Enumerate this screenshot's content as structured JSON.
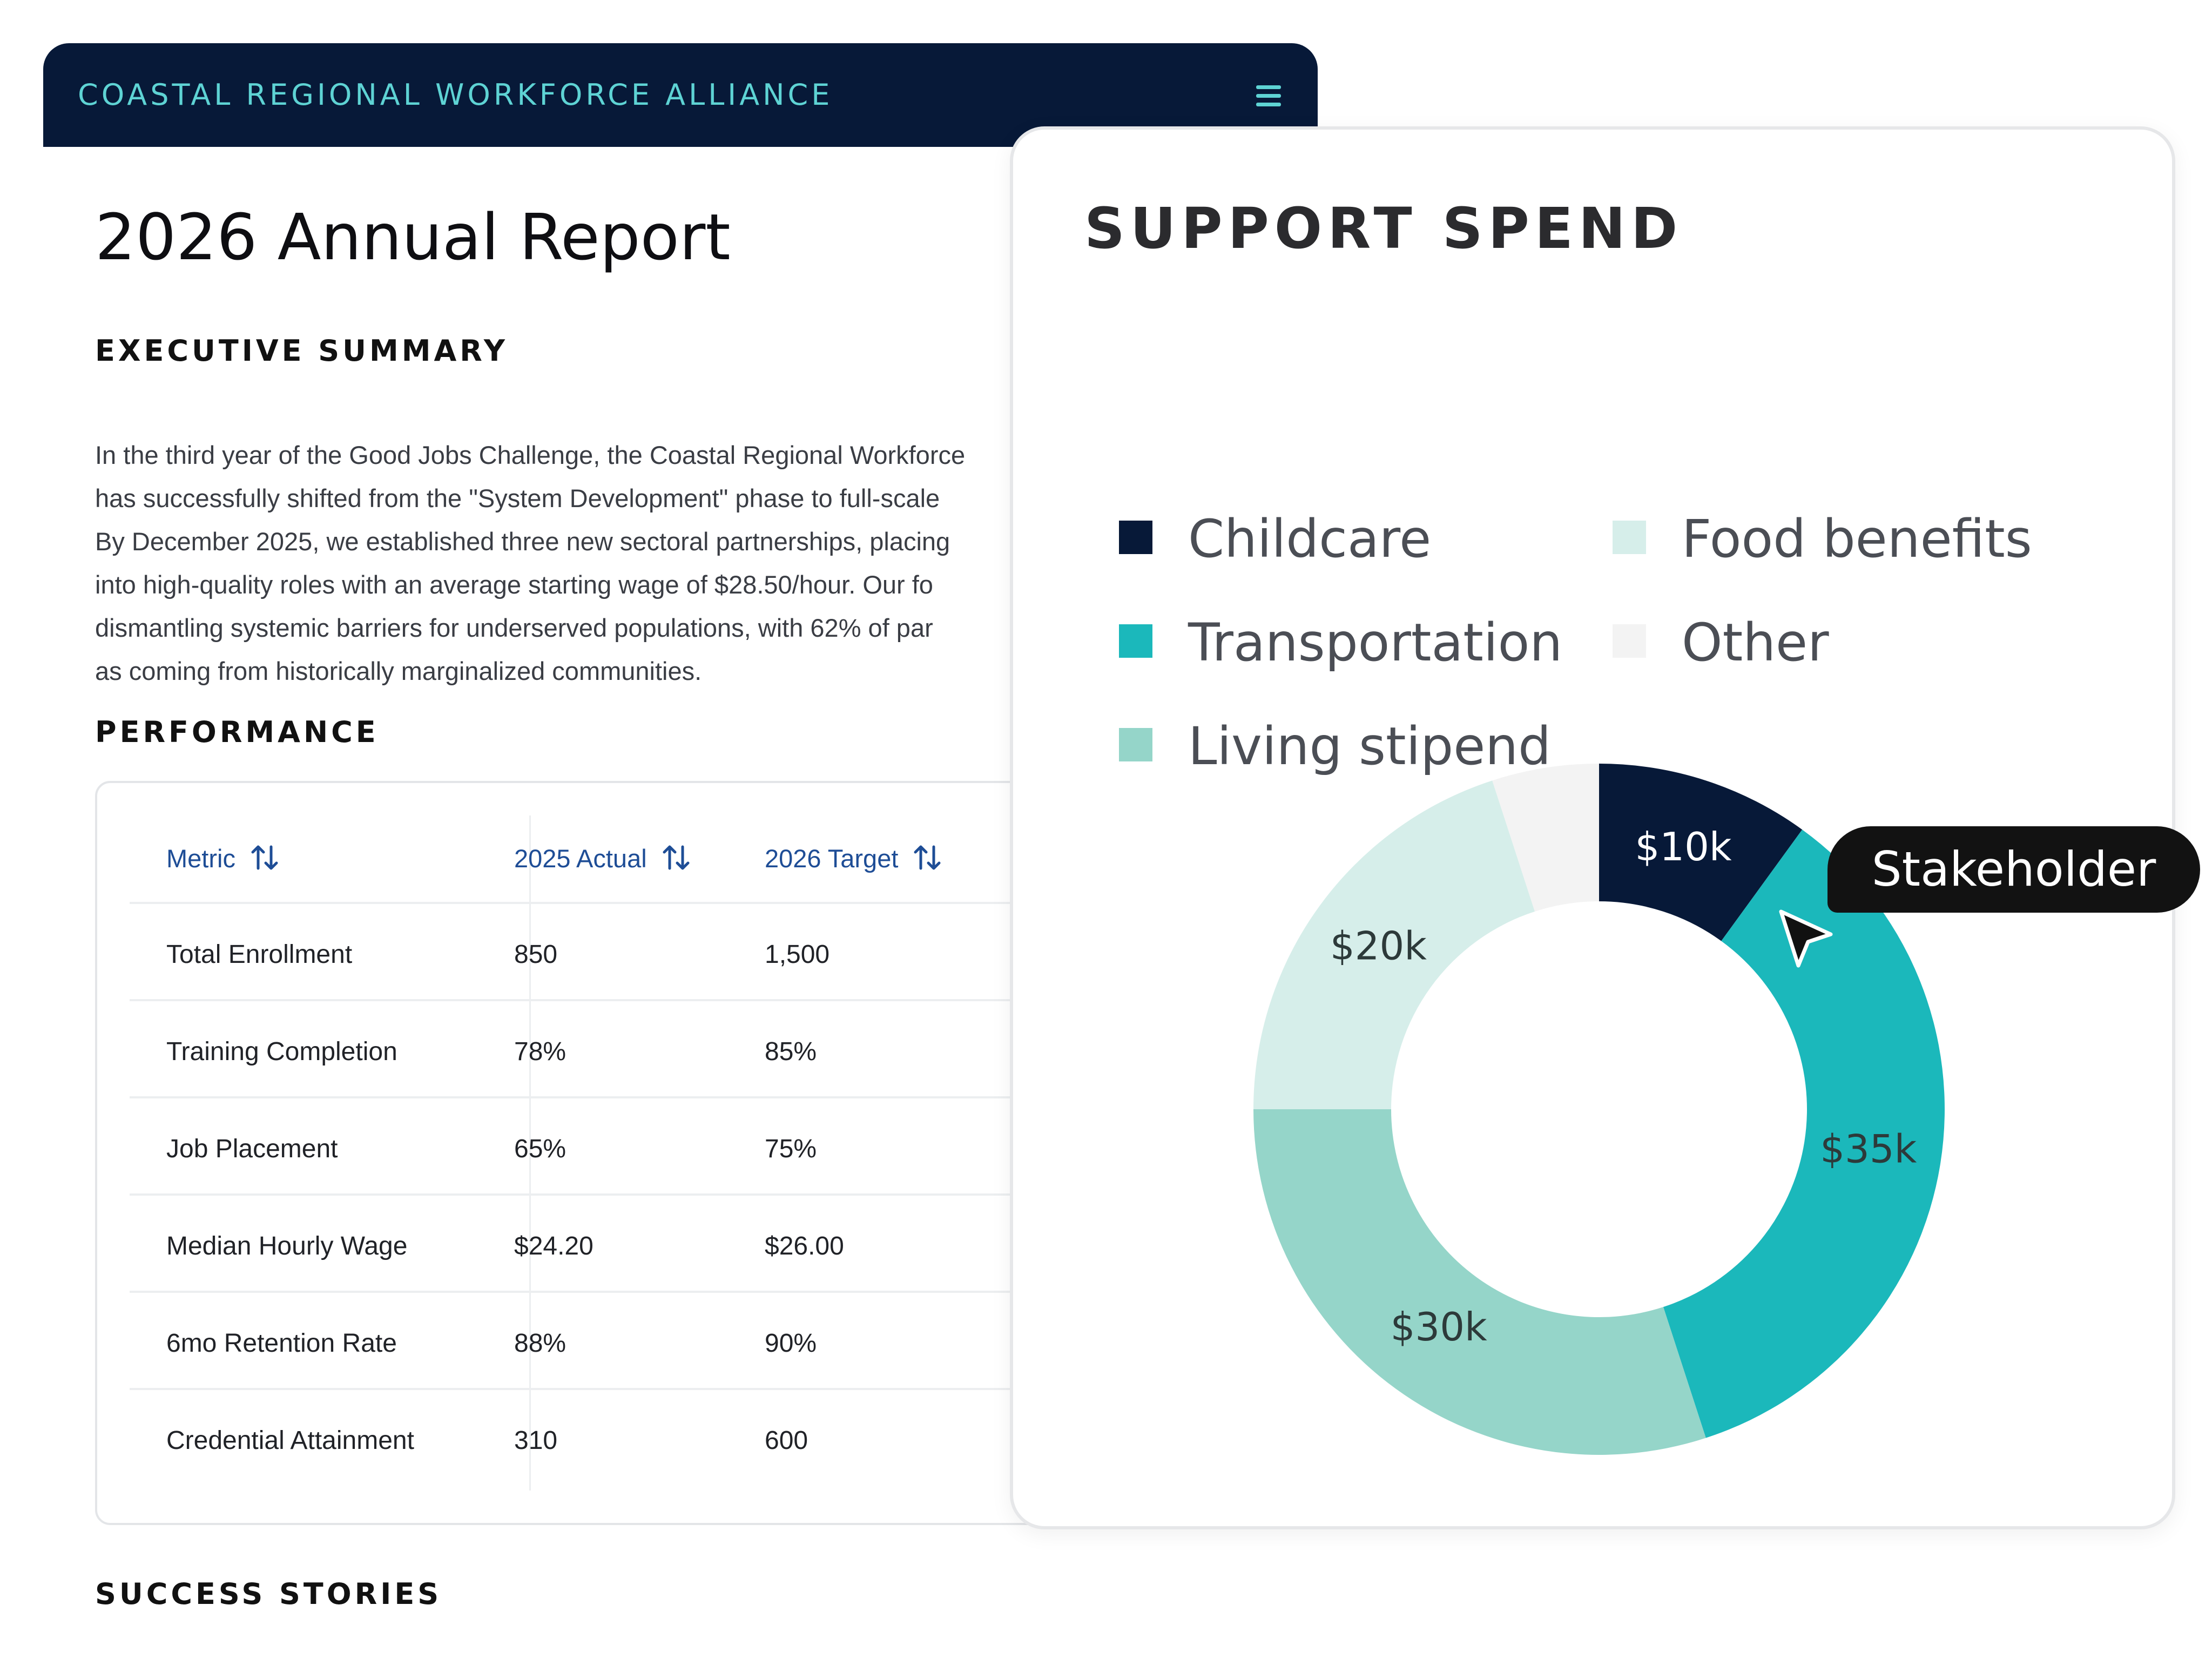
{
  "header": {
    "org_name": "COASTAL REGIONAL WORKFORCE ALLIANCE",
    "menu_icon": "hamburger-menu-icon",
    "background": "#071938",
    "accent": "#5ed3d4"
  },
  "report": {
    "title": "2026 Annual Report",
    "executive_summary_heading": "EXECUTIVE SUMMARY",
    "summary_lines": [
      "In the third year of the Good Jobs Challenge, the Coastal Regional Workforce",
      "has successfully shifted from the \"System Development\" phase to full-scale",
      "By December 2025, we established three new sectoral partnerships, placing",
      "into high-quality roles with an average starting wage of $28.50/hour. Our fo",
      "dismantling systemic barriers for underserved populations, with 62% of par",
      "as coming from historically marginalized communities."
    ],
    "performance_heading": "PERFORMANCE",
    "success_stories_heading": "SUCCESS STORIES"
  },
  "performance_table": {
    "columns": [
      "Metric",
      "2025 Actual",
      "2026 Target"
    ],
    "sort_icon": "sort-arrows-icon",
    "rows": [
      [
        "Total Enrollment",
        "850",
        "1,500"
      ],
      [
        "Training Completion",
        "78%",
        "85%"
      ],
      [
        "Job Placement",
        "65%",
        "75%"
      ],
      [
        "Median Hourly Wage",
        "$24.20",
        "$26.00"
      ],
      [
        "6mo Retention Rate",
        "88%",
        "90%"
      ],
      [
        "Credential Attainment",
        "310",
        "600"
      ]
    ]
  },
  "support_spend": {
    "title": "SUPPORT SPEND",
    "legend": [
      {
        "label": "Childcare",
        "color": "#071938"
      },
      {
        "label": "Food benefits",
        "color": "#d6eeea"
      },
      {
        "label": "Transportation",
        "color": "#1bb8bb"
      },
      {
        "label": "Other",
        "color": "#f3f3f3"
      },
      {
        "label": "Living stipend",
        "color": "#95d5c9"
      }
    ]
  },
  "chart_data": {
    "type": "pie",
    "donut": true,
    "title": "SUPPORT SPEND",
    "slices": [
      {
        "label": "Childcare",
        "value": 10,
        "display": "$10k",
        "color": "#071938"
      },
      {
        "label": "Transportation",
        "value": 35,
        "display": "$35k",
        "color": "#1bb8bb"
      },
      {
        "label": "Living stipend",
        "value": 30,
        "display": "$30k",
        "color": "#95d5c9"
      },
      {
        "label": "Food benefits",
        "value": 20,
        "display": "$20k",
        "color": "#d6eeea"
      },
      {
        "label": "Other",
        "value": 5,
        "display": "",
        "color": "#f3f3f3"
      }
    ],
    "legend_placement": "top"
  },
  "tooltip": {
    "text": "Stakeholder",
    "cursor_icon": "mouse-pointer-icon"
  }
}
